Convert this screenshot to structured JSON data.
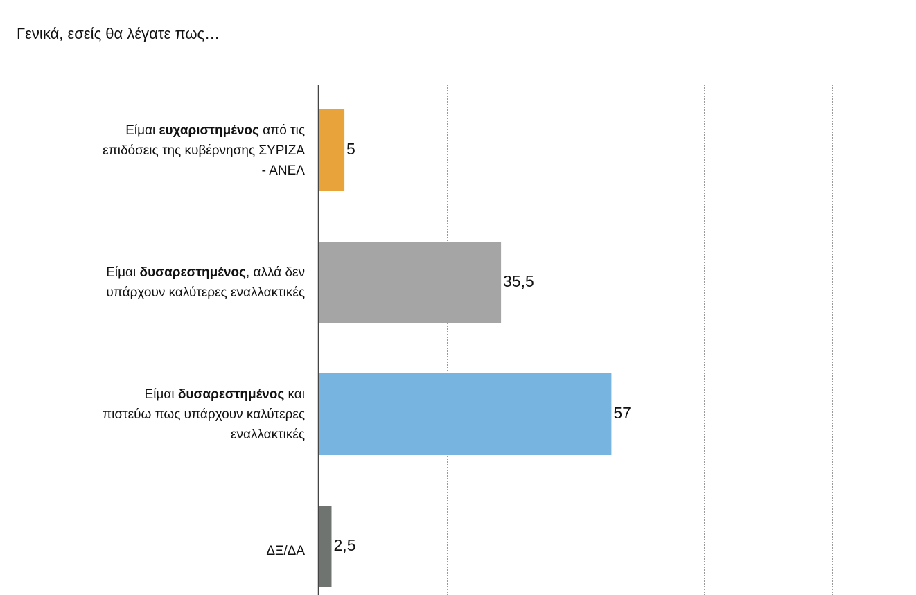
{
  "title": "Γενικά, εσείς θα λέγατε πως…",
  "chart_data": {
    "type": "bar",
    "orientation": "horizontal",
    "categories": [
      "Είμαι ευχαριστημένος από τις επιδόσεις  της κυβέρνησης ΣΥΡΙΖΑ - ΑΝΕΛ",
      "Είμαι δυσαρεστημένος, αλλά δεν υπάρχουν καλύτερες εναλλακτικές",
      "Είμαι δυσαρεστημένος και πιστεύω πως υπάρχουν καλύτερες εναλλακτικές",
      "ΔΞ/ΔΑ"
    ],
    "category_parts": [
      {
        "lines": [
          [
            "Είμαι ",
            "ευχαριστημένος",
            " από τις"
          ],
          [
            "επιδόσεις  της κυβέρνησης ΣΥΡΙΖΑ",
            "",
            ""
          ],
          [
            "- ΑΝΕΛ",
            "",
            ""
          ]
        ]
      },
      {
        "lines": [
          [
            "Είμαι ",
            "δυσαρεστημένος",
            ", αλλά δεν"
          ],
          [
            "υπάρχουν καλύτερες εναλλακτικές",
            "",
            ""
          ]
        ]
      },
      {
        "lines": [
          [
            "Είμαι ",
            "δυσαρεστημένος",
            " και"
          ],
          [
            "πιστεύω πως υπάρχουν καλύτερες",
            "",
            ""
          ],
          [
            "εναλλακτικές",
            "",
            ""
          ]
        ]
      },
      {
        "lines": [
          [
            "ΔΞ/ΔΑ",
            "",
            ""
          ]
        ]
      }
    ],
    "values": [
      5,
      35.5,
      57,
      2.5
    ],
    "value_labels": [
      "5",
      "35,5",
      "57",
      "2,5"
    ],
    "colors": [
      "#E8A43A",
      "#A5A5A5",
      "#78B4E0",
      "#6F7470"
    ],
    "xlim": [
      0,
      100
    ],
    "gridlines": [
      25,
      50,
      75,
      100
    ],
    "grid": true,
    "grid_style": "dotted",
    "xlabel": "",
    "ylabel": ""
  }
}
